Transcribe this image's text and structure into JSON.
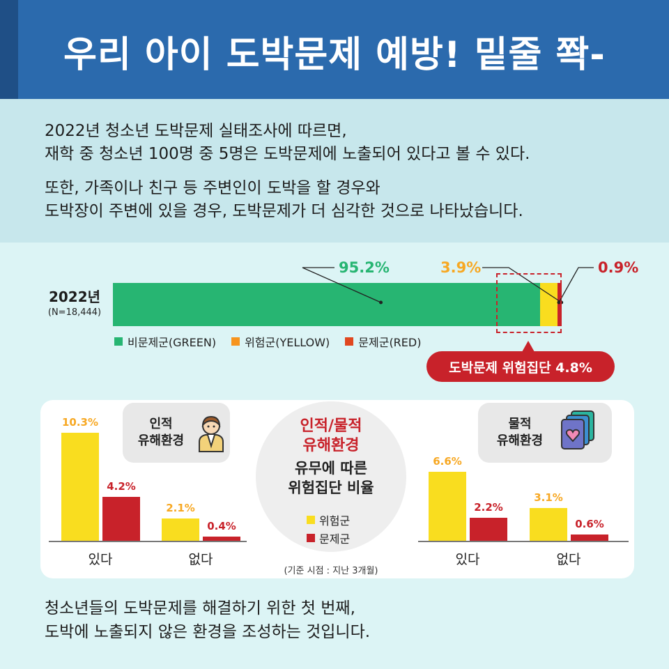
{
  "header": {
    "title": "우리 아이 도박문제 예방! 밑줄 쫙-"
  },
  "intro": {
    "paragraph1": [
      "2022년 청소년 도박문제 실태조사에 따르면,",
      "재학 중 청소년 100명 중 5명은 도박문제에 노출되어 있다고 볼 수 있다."
    ],
    "paragraph2": [
      "또한, 가족이나 친구 등 주변인이 도박을 할 경우와",
      "도박장이 주변에 있을 경우, 도박문제가 더 심각한 것으로 나타났습니다."
    ]
  },
  "colors": {
    "green": "#27b572",
    "yellow": "#f9dd1f",
    "red": "#c8222a",
    "header": "#2b6aad"
  },
  "chart_data": [
    {
      "type": "bar",
      "orientation": "horizontal-stacked",
      "row_label": "2022년",
      "row_sublabel": "(N=18,444)",
      "series": [
        {
          "name": "비문제군(GREEN)",
          "value": 95.2,
          "label": "95.2%",
          "color": "#27b572"
        },
        {
          "name": "위험군(YELLOW)",
          "value": 3.9,
          "label": "3.9%",
          "color": "#f9dd1f"
        },
        {
          "name": "문제군(RED)",
          "value": 0.9,
          "label": "0.9%",
          "color": "#c8222a"
        }
      ],
      "annotation": "도박문제 위험집단 4.8%"
    },
    {
      "type": "bar",
      "group_title": [
        "인적",
        "유해환경"
      ],
      "icon": "person-icon",
      "categories": [
        "있다",
        "없다"
      ],
      "series": [
        {
          "name": "위험군",
          "values": [
            10.3,
            2.1
          ],
          "labels": [
            "10.3%",
            "2.1%"
          ],
          "color": "#f9dd1f"
        },
        {
          "name": "문제군",
          "values": [
            4.2,
            0.4
          ],
          "labels": [
            "4.2%",
            "0.4%"
          ],
          "color": "#c8222a"
        }
      ]
    },
    {
      "type": "bar",
      "group_title": [
        "물적",
        "유해환경"
      ],
      "icon": "cards-icon",
      "categories": [
        "있다",
        "없다"
      ],
      "series": [
        {
          "name": "위험군",
          "values": [
            6.6,
            3.1
          ],
          "labels": [
            "6.6%",
            "3.1%"
          ],
          "color": "#f9dd1f"
        },
        {
          "name": "문제군",
          "values": [
            2.2,
            0.6
          ],
          "labels": [
            "2.2%",
            "0.6%"
          ],
          "color": "#c8222a"
        }
      ]
    }
  ],
  "center": {
    "title_red": [
      "인적/물적",
      "유해환경"
    ],
    "title_dark": [
      "유무에 따른",
      "위험집단 비율"
    ],
    "legend": [
      "위험군",
      "문제군"
    ],
    "basis": "(기준 시점 : 지난 3개월)"
  },
  "closing": [
    "청소년들의 도박문제를 해결하기 위한 첫 번째,",
    "도박에 노출되지 않은 환경을 조성하는 것입니다."
  ]
}
